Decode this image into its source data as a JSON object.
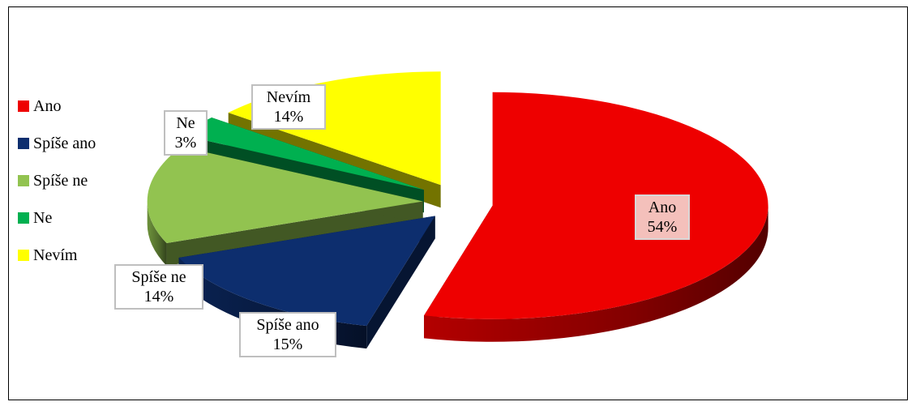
{
  "chart_data": {
    "type": "pie",
    "style": "3d-exploded",
    "categories": [
      "Ano",
      "Spíše ano",
      "Spíše ne",
      "Ne",
      "Nevím"
    ],
    "values": [
      54,
      15,
      14,
      3,
      14
    ],
    "value_labels": [
      "54%",
      "15%",
      "14%",
      "3%",
      "14%"
    ],
    "colors": [
      "#ee0000",
      "#0d2e6e",
      "#92c350",
      "#00b050",
      "#ffff00"
    ],
    "legend_position": "left",
    "title": ""
  }
}
